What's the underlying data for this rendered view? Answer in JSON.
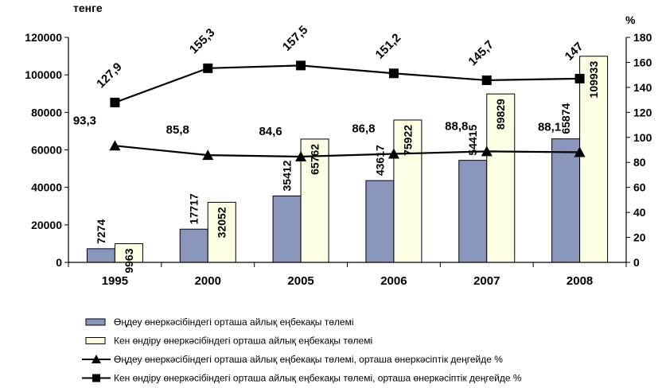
{
  "chart_data": {
    "type": "bar",
    "title": "",
    "categories": [
      "1995",
      "2000",
      "2005",
      "2006",
      "2007",
      "2008"
    ],
    "y_left": {
      "label": "тенге",
      "lim": [
        0,
        120000
      ],
      "ticks": [
        0,
        20000,
        40000,
        60000,
        80000,
        100000,
        120000
      ]
    },
    "y_right": {
      "label": "%",
      "lim": [
        0,
        180
      ],
      "ticks": [
        0,
        20,
        40,
        60,
        80,
        100,
        120,
        140,
        160,
        180
      ]
    },
    "series": [
      {
        "name": "Өңдеу өнеркәсібіндегі орташа айлық еңбекақы төлемі",
        "kind": "bar",
        "axis": "left",
        "color": "#8b96bd",
        "values": [
          7274,
          17717,
          35412,
          43617,
          54415,
          65874
        ],
        "labels": [
          "7274",
          "17717",
          "35412",
          "43617",
          "54415",
          "65874"
        ]
      },
      {
        "name": "Кен өндіру өнеркәсібіндегі орташа айлық еңбекақы төлемі",
        "kind": "bar",
        "axis": "left",
        "color": "#ffffe6",
        "values": [
          9963,
          32052,
          65762,
          75922,
          89829,
          109933
        ],
        "labels": [
          "9963",
          "32052",
          "65762",
          "75922",
          "89829",
          "109933"
        ]
      },
      {
        "name": "Өңдеу өнеркәсібіндегі орташа айлық еңбекақы төлемі, орташа өнеркәсіптік деңгейде %",
        "kind": "line",
        "axis": "right",
        "marker": "triangle",
        "values": [
          93.3,
          85.8,
          84.6,
          86.8,
          88.8,
          88.1
        ],
        "labels": [
          "93,3",
          "85,8",
          "84,6",
          "86,8",
          "88,8",
          "88,1"
        ]
      },
      {
        "name": "Кен өндіру өнеркәсібіндегі орташа айлық еңбекақы төлемі, орташа өнеркәсіптік деңгейде %",
        "kind": "line",
        "axis": "right",
        "marker": "square",
        "values": [
          127.9,
          155.3,
          157.5,
          151.2,
          145.7,
          147
        ],
        "labels": [
          "127,9",
          "155,3",
          "157,5",
          "151,2",
          "145,7",
          "147"
        ]
      }
    ],
    "grid": false,
    "legend": "bottom"
  }
}
